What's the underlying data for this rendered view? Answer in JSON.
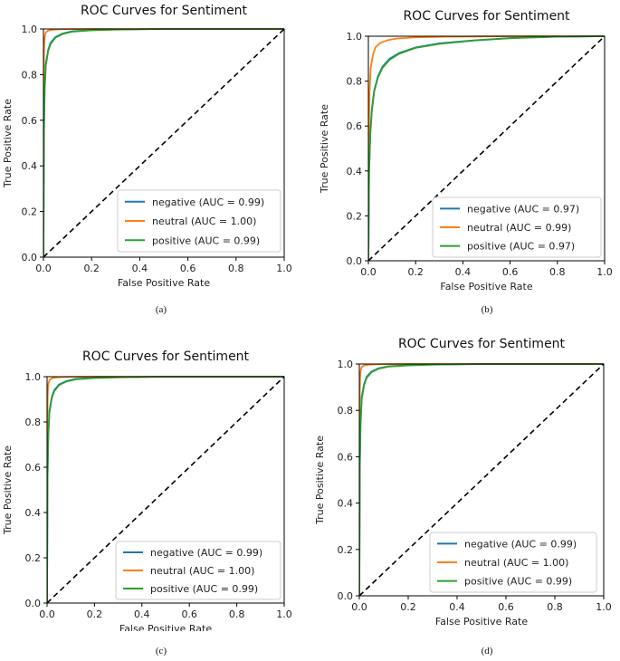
{
  "colors": {
    "negative": "#1f77b4",
    "neutral": "#ff7f0e",
    "positive": "#2ca02c",
    "diagonal": "#000000"
  },
  "chart_data": [
    {
      "type": "line",
      "caption": "(a)",
      "title": "ROC Curves for Sentiment",
      "xlabel": "False Positive Rate",
      "ylabel": "True Positive Rate",
      "xlim": [
        0,
        1
      ],
      "ylim": [
        0,
        1
      ],
      "xticks": [
        "0.0",
        "0.2",
        "0.4",
        "0.6",
        "0.8",
        "1.0"
      ],
      "yticks": [
        "0.0",
        "0.2",
        "0.4",
        "0.6",
        "0.8",
        "1.0"
      ],
      "series": [
        {
          "name": "negative",
          "label": "negative (AUC = 0.99)",
          "x": [
            0,
            0.002,
            0.005,
            0.01,
            0.02,
            0.03,
            0.05,
            0.08,
            0.12,
            0.2,
            0.3,
            0.5,
            1.0
          ],
          "y": [
            0,
            0.55,
            0.74,
            0.85,
            0.91,
            0.94,
            0.965,
            0.98,
            0.99,
            0.995,
            0.998,
            1.0,
            1.0
          ]
        },
        {
          "name": "neutral",
          "label": "neutral (AUC = 1.00)",
          "x": [
            0,
            0.001,
            0.003,
            0.006,
            0.01,
            0.02,
            0.04,
            0.08,
            0.2,
            1.0
          ],
          "y": [
            0,
            0.8,
            0.93,
            0.97,
            0.985,
            0.993,
            0.997,
            0.999,
            1.0,
            1.0
          ]
        },
        {
          "name": "positive",
          "label": "positive (AUC = 0.99)",
          "x": [
            0,
            0.002,
            0.005,
            0.01,
            0.02,
            0.03,
            0.05,
            0.08,
            0.12,
            0.2,
            0.3,
            0.5,
            1.0
          ],
          "y": [
            0,
            0.54,
            0.73,
            0.84,
            0.905,
            0.935,
            0.962,
            0.978,
            0.988,
            0.994,
            0.997,
            1.0,
            1.0
          ]
        },
        {
          "name": "chance",
          "label": "",
          "x": [
            0,
            1
          ],
          "y": [
            0,
            1
          ]
        }
      ],
      "legend": "lower-right"
    },
    {
      "type": "line",
      "caption": "(b)",
      "title": "ROC Curves for Sentiment",
      "xlabel": "False Positive Rate",
      "ylabel": "True Positive Rate",
      "xlim": [
        0,
        1
      ],
      "ylim": [
        0,
        1
      ],
      "xticks": [
        "0.0",
        "0.2",
        "0.4",
        "0.6",
        "0.8",
        "1.0"
      ],
      "yticks": [
        "0.0",
        "0.2",
        "0.4",
        "0.6",
        "0.8",
        "1.0"
      ],
      "series": [
        {
          "name": "negative",
          "label": "negative (AUC = 0.97)",
          "x": [
            0,
            0.003,
            0.008,
            0.015,
            0.025,
            0.04,
            0.06,
            0.09,
            0.13,
            0.2,
            0.3,
            0.45,
            0.6,
            0.8,
            1.0
          ],
          "y": [
            0,
            0.4,
            0.57,
            0.68,
            0.76,
            0.82,
            0.865,
            0.9,
            0.925,
            0.95,
            0.968,
            0.982,
            0.992,
            0.998,
            1.0
          ]
        },
        {
          "name": "neutral",
          "label": "neutral (AUC = 0.99)",
          "x": [
            0,
            0.002,
            0.005,
            0.01,
            0.02,
            0.03,
            0.05,
            0.08,
            0.12,
            0.2,
            0.35,
            0.6,
            1.0
          ],
          "y": [
            0,
            0.55,
            0.75,
            0.86,
            0.92,
            0.95,
            0.97,
            0.982,
            0.99,
            0.995,
            0.998,
            1.0,
            1.0
          ]
        },
        {
          "name": "positive",
          "label": "positive (AUC = 0.97)",
          "x": [
            0,
            0.003,
            0.008,
            0.015,
            0.025,
            0.04,
            0.06,
            0.09,
            0.13,
            0.2,
            0.3,
            0.45,
            0.6,
            0.8,
            1.0
          ],
          "y": [
            0,
            0.39,
            0.56,
            0.67,
            0.755,
            0.815,
            0.86,
            0.895,
            0.922,
            0.948,
            0.966,
            0.981,
            0.991,
            0.998,
            1.0
          ]
        },
        {
          "name": "chance",
          "label": "",
          "x": [
            0,
            1
          ],
          "y": [
            0,
            1
          ]
        }
      ],
      "legend": "lower-right"
    },
    {
      "type": "line",
      "caption": "(c)",
      "title": "ROC Curves for Sentiment",
      "xlabel": "False Positive Rate",
      "ylabel": "True Positive Rate",
      "xlim": [
        0,
        1
      ],
      "ylim": [
        0,
        1
      ],
      "xticks": [
        "0.0",
        "0.2",
        "0.4",
        "0.6",
        "0.8",
        "1.0"
      ],
      "yticks": [
        "0.0",
        "0.2",
        "0.4",
        "0.6",
        "0.8",
        "1.0"
      ],
      "series": [
        {
          "name": "negative",
          "label": "negative (AUC = 0.99)",
          "x": [
            0,
            0.002,
            0.005,
            0.01,
            0.02,
            0.03,
            0.05,
            0.08,
            0.12,
            0.2,
            0.3,
            0.5,
            1.0
          ],
          "y": [
            0,
            0.55,
            0.74,
            0.85,
            0.91,
            0.94,
            0.965,
            0.98,
            0.99,
            0.995,
            0.998,
            1.0,
            1.0
          ]
        },
        {
          "name": "neutral",
          "label": "neutral (AUC = 1.00)",
          "x": [
            0,
            0.001,
            0.003,
            0.006,
            0.01,
            0.02,
            0.04,
            0.08,
            0.2,
            1.0
          ],
          "y": [
            0,
            0.8,
            0.93,
            0.97,
            0.985,
            0.993,
            0.997,
            0.999,
            1.0,
            1.0
          ]
        },
        {
          "name": "positive",
          "label": "positive (AUC = 0.99)",
          "x": [
            0,
            0.002,
            0.005,
            0.01,
            0.02,
            0.03,
            0.05,
            0.08,
            0.12,
            0.2,
            0.3,
            0.5,
            1.0
          ],
          "y": [
            0,
            0.54,
            0.73,
            0.84,
            0.905,
            0.935,
            0.962,
            0.978,
            0.988,
            0.994,
            0.997,
            1.0,
            1.0
          ]
        },
        {
          "name": "chance",
          "label": "",
          "x": [
            0,
            1
          ],
          "y": [
            0,
            1
          ]
        }
      ],
      "legend": "lower-right"
    },
    {
      "type": "line",
      "caption": "(d)",
      "title": "ROC Curves for Sentiment",
      "xlabel": "False Positive Rate",
      "ylabel": "True Positive Rate",
      "xlim": [
        0,
        1
      ],
      "ylim": [
        0,
        1
      ],
      "xticks": [
        "0.0",
        "0.2",
        "0.4",
        "0.6",
        "0.8",
        "1.0"
      ],
      "yticks": [
        "0.0",
        "0.2",
        "0.4",
        "0.6",
        "0.8",
        "1.0"
      ],
      "series": [
        {
          "name": "negative",
          "label": "negative (AUC = 0.99)",
          "x": [
            0,
            0.002,
            0.005,
            0.01,
            0.02,
            0.03,
            0.05,
            0.08,
            0.12,
            0.2,
            0.3,
            0.5,
            1.0
          ],
          "y": [
            0,
            0.56,
            0.75,
            0.86,
            0.915,
            0.945,
            0.968,
            0.982,
            0.99,
            0.995,
            0.998,
            1.0,
            1.0
          ]
        },
        {
          "name": "neutral",
          "label": "neutral (AUC = 1.00)",
          "x": [
            0,
            0.001,
            0.003,
            0.006,
            0.01,
            0.02,
            0.04,
            0.08,
            0.2,
            1.0
          ],
          "y": [
            0,
            0.82,
            0.94,
            0.975,
            0.988,
            0.994,
            0.997,
            0.999,
            1.0,
            1.0
          ]
        },
        {
          "name": "positive",
          "label": "positive (AUC = 0.99)",
          "x": [
            0,
            0.002,
            0.005,
            0.01,
            0.02,
            0.03,
            0.05,
            0.08,
            0.12,
            0.2,
            0.3,
            0.5,
            1.0
          ],
          "y": [
            0,
            0.55,
            0.74,
            0.85,
            0.91,
            0.94,
            0.965,
            0.98,
            0.989,
            0.994,
            0.997,
            1.0,
            1.0
          ]
        },
        {
          "name": "chance",
          "label": "",
          "x": [
            0,
            1
          ],
          "y": [
            0,
            1
          ]
        }
      ],
      "legend": "lower-right"
    }
  ]
}
